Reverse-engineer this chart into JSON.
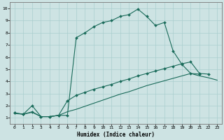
{
  "xlabel": "Humidex (Indice chaleur)",
  "xlim": [
    -0.5,
    23.5
  ],
  "ylim": [
    0.5,
    10.5
  ],
  "xticks": [
    0,
    1,
    2,
    3,
    4,
    5,
    6,
    7,
    8,
    9,
    10,
    11,
    12,
    13,
    14,
    15,
    16,
    17,
    18,
    19,
    20,
    21,
    22,
    23
  ],
  "yticks": [
    1,
    2,
    3,
    4,
    5,
    6,
    7,
    8,
    9,
    10
  ],
  "bg_color": "#cde3e3",
  "line_color": "#1a6b5a",
  "grid_color": "#aacece",
  "line1_x": [
    0,
    1,
    2,
    3,
    4,
    5,
    6,
    7,
    8,
    9,
    10,
    11,
    12,
    13,
    14,
    15,
    16,
    17,
    18,
    19,
    20,
    21
  ],
  "line1_y": [
    1.4,
    1.3,
    2.0,
    1.1,
    1.1,
    1.2,
    1.2,
    7.6,
    8.0,
    8.5,
    8.85,
    9.0,
    9.35,
    9.5,
    9.95,
    9.35,
    8.6,
    8.85,
    6.5,
    5.4,
    4.65,
    4.6
  ],
  "line2_x": [
    0,
    1,
    2,
    3,
    4,
    5,
    6,
    7,
    8,
    9,
    10,
    11,
    12,
    13,
    14,
    15,
    16,
    17,
    18,
    19,
    20,
    21,
    22
  ],
  "line2_y": [
    1.4,
    1.3,
    1.5,
    1.1,
    1.1,
    1.2,
    2.4,
    2.85,
    3.1,
    3.35,
    3.55,
    3.75,
    4.0,
    4.2,
    4.45,
    4.65,
    4.85,
    5.05,
    5.25,
    5.45,
    5.6,
    4.65,
    4.6
  ],
  "line3_x": [
    0,
    1,
    2,
    3,
    4,
    5,
    6,
    7,
    8,
    9,
    10,
    11,
    12,
    13,
    14,
    15,
    16,
    17,
    18,
    19,
    20,
    21,
    22,
    23
  ],
  "line3_y": [
    1.35,
    1.3,
    1.45,
    1.1,
    1.1,
    1.2,
    1.5,
    1.7,
    1.95,
    2.2,
    2.45,
    2.7,
    2.95,
    3.15,
    3.4,
    3.65,
    3.85,
    4.05,
    4.25,
    4.45,
    4.65,
    4.45,
    4.3,
    4.1
  ]
}
